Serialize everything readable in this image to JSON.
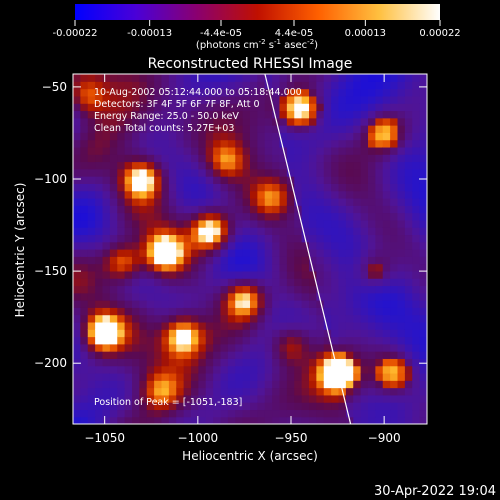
{
  "colorbar": {
    "ticks": [
      "-0.00022",
      "-0.00013",
      "-4.4e-05",
      "4.4e-05",
      "0.00013",
      "0.00022"
    ],
    "tick_values": [
      -0.00022,
      -0.00013,
      -4.4e-05,
      4.4e-05,
      0.00013,
      0.00022
    ],
    "range": [
      -0.00022,
      0.00022
    ],
    "units_main": "(photons cm",
    "units_exp1": "-2",
    "units_s": " s",
    "units_exp2": "-1",
    "units_asec": " asec",
    "units_exp3": "-2",
    "units_close": ")",
    "palette": [
      "#0000ff",
      "#4a00d8",
      "#8a0070",
      "#c01000",
      "#ff6000",
      "#ffc040",
      "#ffffff"
    ]
  },
  "info": {
    "line1": "10-Aug-2002 05:12:44.000 to 05:18:44.000",
    "line2": "Detectors: 3F 4F 5F 6F 7F 8F, Att 0",
    "line3": "Energy Range: 25.0 - 50.0 keV",
    "line4": "Clean    Total counts: 5.27E+03",
    "peak": "Position of Peak = [-1051,-183]"
  },
  "timestamp": "30-Apr-2022 19:04",
  "chart_data": {
    "type": "heatmap",
    "title": "Reconstructed RHESSI Image",
    "xlabel": "Heliocentric X (arcsec)",
    "ylabel": "Heliocentric Y (arcsec)",
    "xlim": [
      -1067,
      -877
    ],
    "ylim": [
      -233,
      -43
    ],
    "x_ticks": [
      -1050,
      -1000,
      -950,
      -900
    ],
    "y_ticks": [
      -50,
      -100,
      -150,
      -200
    ],
    "x_tick_labels": [
      "−1050",
      "−1000",
      "−950",
      "−900"
    ],
    "y_tick_labels": [
      "−50",
      "−100",
      "−150",
      "−200"
    ],
    "limb_line": [
      {
        "x": -964,
        "y": -43
      },
      {
        "x": -918,
        "y": -233
      }
    ],
    "bright_sources": [
      {
        "x": -1051,
        "y": -183,
        "intensity": 1.0
      },
      {
        "x": -925,
        "y": -205,
        "intensity": 1.0
      },
      {
        "x": -1018,
        "y": -140,
        "intensity": 0.95
      },
      {
        "x": -993,
        "y": -128,
        "intensity": 1.0
      },
      {
        "x": -1030,
        "y": -100,
        "intensity": 0.85
      },
      {
        "x": -945,
        "y": -62,
        "intensity": 0.85
      },
      {
        "x": -1008,
        "y": -185,
        "intensity": 0.8
      },
      {
        "x": -975,
        "y": -165,
        "intensity": 0.8
      },
      {
        "x": -1040,
        "y": -145,
        "intensity": 0.7
      },
      {
        "x": -900,
        "y": -75,
        "intensity": 0.6
      },
      {
        "x": -1060,
        "y": -55,
        "intensity": 0.5
      },
      {
        "x": -895,
        "y": -205,
        "intensity": 0.6
      },
      {
        "x": -960,
        "y": -110,
        "intensity": 0.5
      },
      {
        "x": -985,
        "y": -90,
        "intensity": 0.55
      },
      {
        "x": -1020,
        "y": -215,
        "intensity": 0.45
      },
      {
        "x": -905,
        "y": -150,
        "intensity": 0.4
      },
      {
        "x": -950,
        "y": -190,
        "intensity": 0.5
      }
    ]
  }
}
